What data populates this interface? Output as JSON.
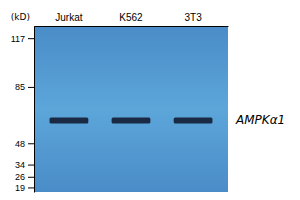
{
  "chart_data": {
    "type": "gel",
    "categories": [
      "Jurkat",
      "K562",
      "3T3"
    ],
    "values": [
      63,
      63,
      63
    ],
    "color": "#1a2a45",
    "ylabel": "(kD)",
    "annotations": [
      {
        "text": "AMPKα1",
        "y": 63
      }
    ],
    "ylim": [
      16,
      125
    ],
    "yticks": [
      117,
      85,
      48,
      34,
      26,
      19
    ]
  }
}
